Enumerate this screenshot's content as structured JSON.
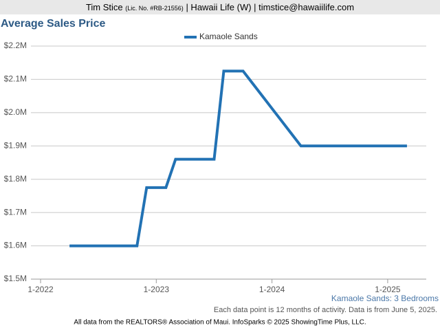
{
  "header": {
    "name": "Tim Stice",
    "license": "(Lic. No. #RB-21556)",
    "rest": "| Hawaii Life (W) | timstice@hawaiilife.com"
  },
  "chart_data": {
    "type": "line",
    "title": "Average Sales Price",
    "x": [
      "4-2022",
      "5-2022",
      "6-2022",
      "7-2022",
      "8-2022",
      "9-2022",
      "10-2022",
      "11-2022",
      "12-2022",
      "1-2023",
      "2-2023",
      "3-2023",
      "4-2023",
      "5-2023",
      "6-2023",
      "7-2023",
      "8-2023",
      "9-2023",
      "10-2023",
      "11-2023",
      "12-2023",
      "1-2024",
      "2-2024",
      "3-2024",
      "4-2024",
      "5-2024",
      "6-2024",
      "7-2024",
      "8-2024",
      "9-2024",
      "10-2024",
      "11-2024",
      "12-2024",
      "1-2025",
      "2-2025",
      "3-2025"
    ],
    "series": [
      {
        "name": "Kamaole Sands",
        "color": "#2272b4",
        "values": [
          1600000,
          1600000,
          1600000,
          1600000,
          1600000,
          1600000,
          1600000,
          1600000,
          1775000,
          1775000,
          1775000,
          1860000,
          1860000,
          1860000,
          1860000,
          1860000,
          2125000,
          2125000,
          2125000,
          2087500,
          2050000,
          2012500,
          1975000,
          1937500,
          1900000,
          1900000,
          1900000,
          1900000,
          1900000,
          1900000,
          1900000,
          1900000,
          1900000,
          1900000,
          1900000,
          1900000
        ]
      }
    ],
    "xlim": [
      "12-2021",
      "5-2025"
    ],
    "xticks": [
      "1-2022",
      "1-2023",
      "1-2024",
      "1-2025"
    ],
    "ylim": [
      1500000,
      2200000
    ],
    "yticks": [
      {
        "value": 1500000,
        "label": "$1.5M"
      },
      {
        "value": 1600000,
        "label": "$1.6M"
      },
      {
        "value": 1700000,
        "label": "$1.7M"
      },
      {
        "value": 1800000,
        "label": "$1.8M"
      },
      {
        "value": 1900000,
        "label": "$1.9M"
      },
      {
        "value": 2000000,
        "label": "$2.0M"
      },
      {
        "value": 2100000,
        "label": "$2.1M"
      },
      {
        "value": 2200000,
        "label": "$2.2M"
      }
    ],
    "grid": true,
    "legend": "top",
    "subtitle": "Kamaole Sands: 3 Bedrooms",
    "note": "Each data point is 12 months of activity. Data is from June 5, 2025.",
    "source": "All data from the REALTORS® Association of Maui. InfoSparks © 2025 ShowingTime Plus, LLC."
  }
}
